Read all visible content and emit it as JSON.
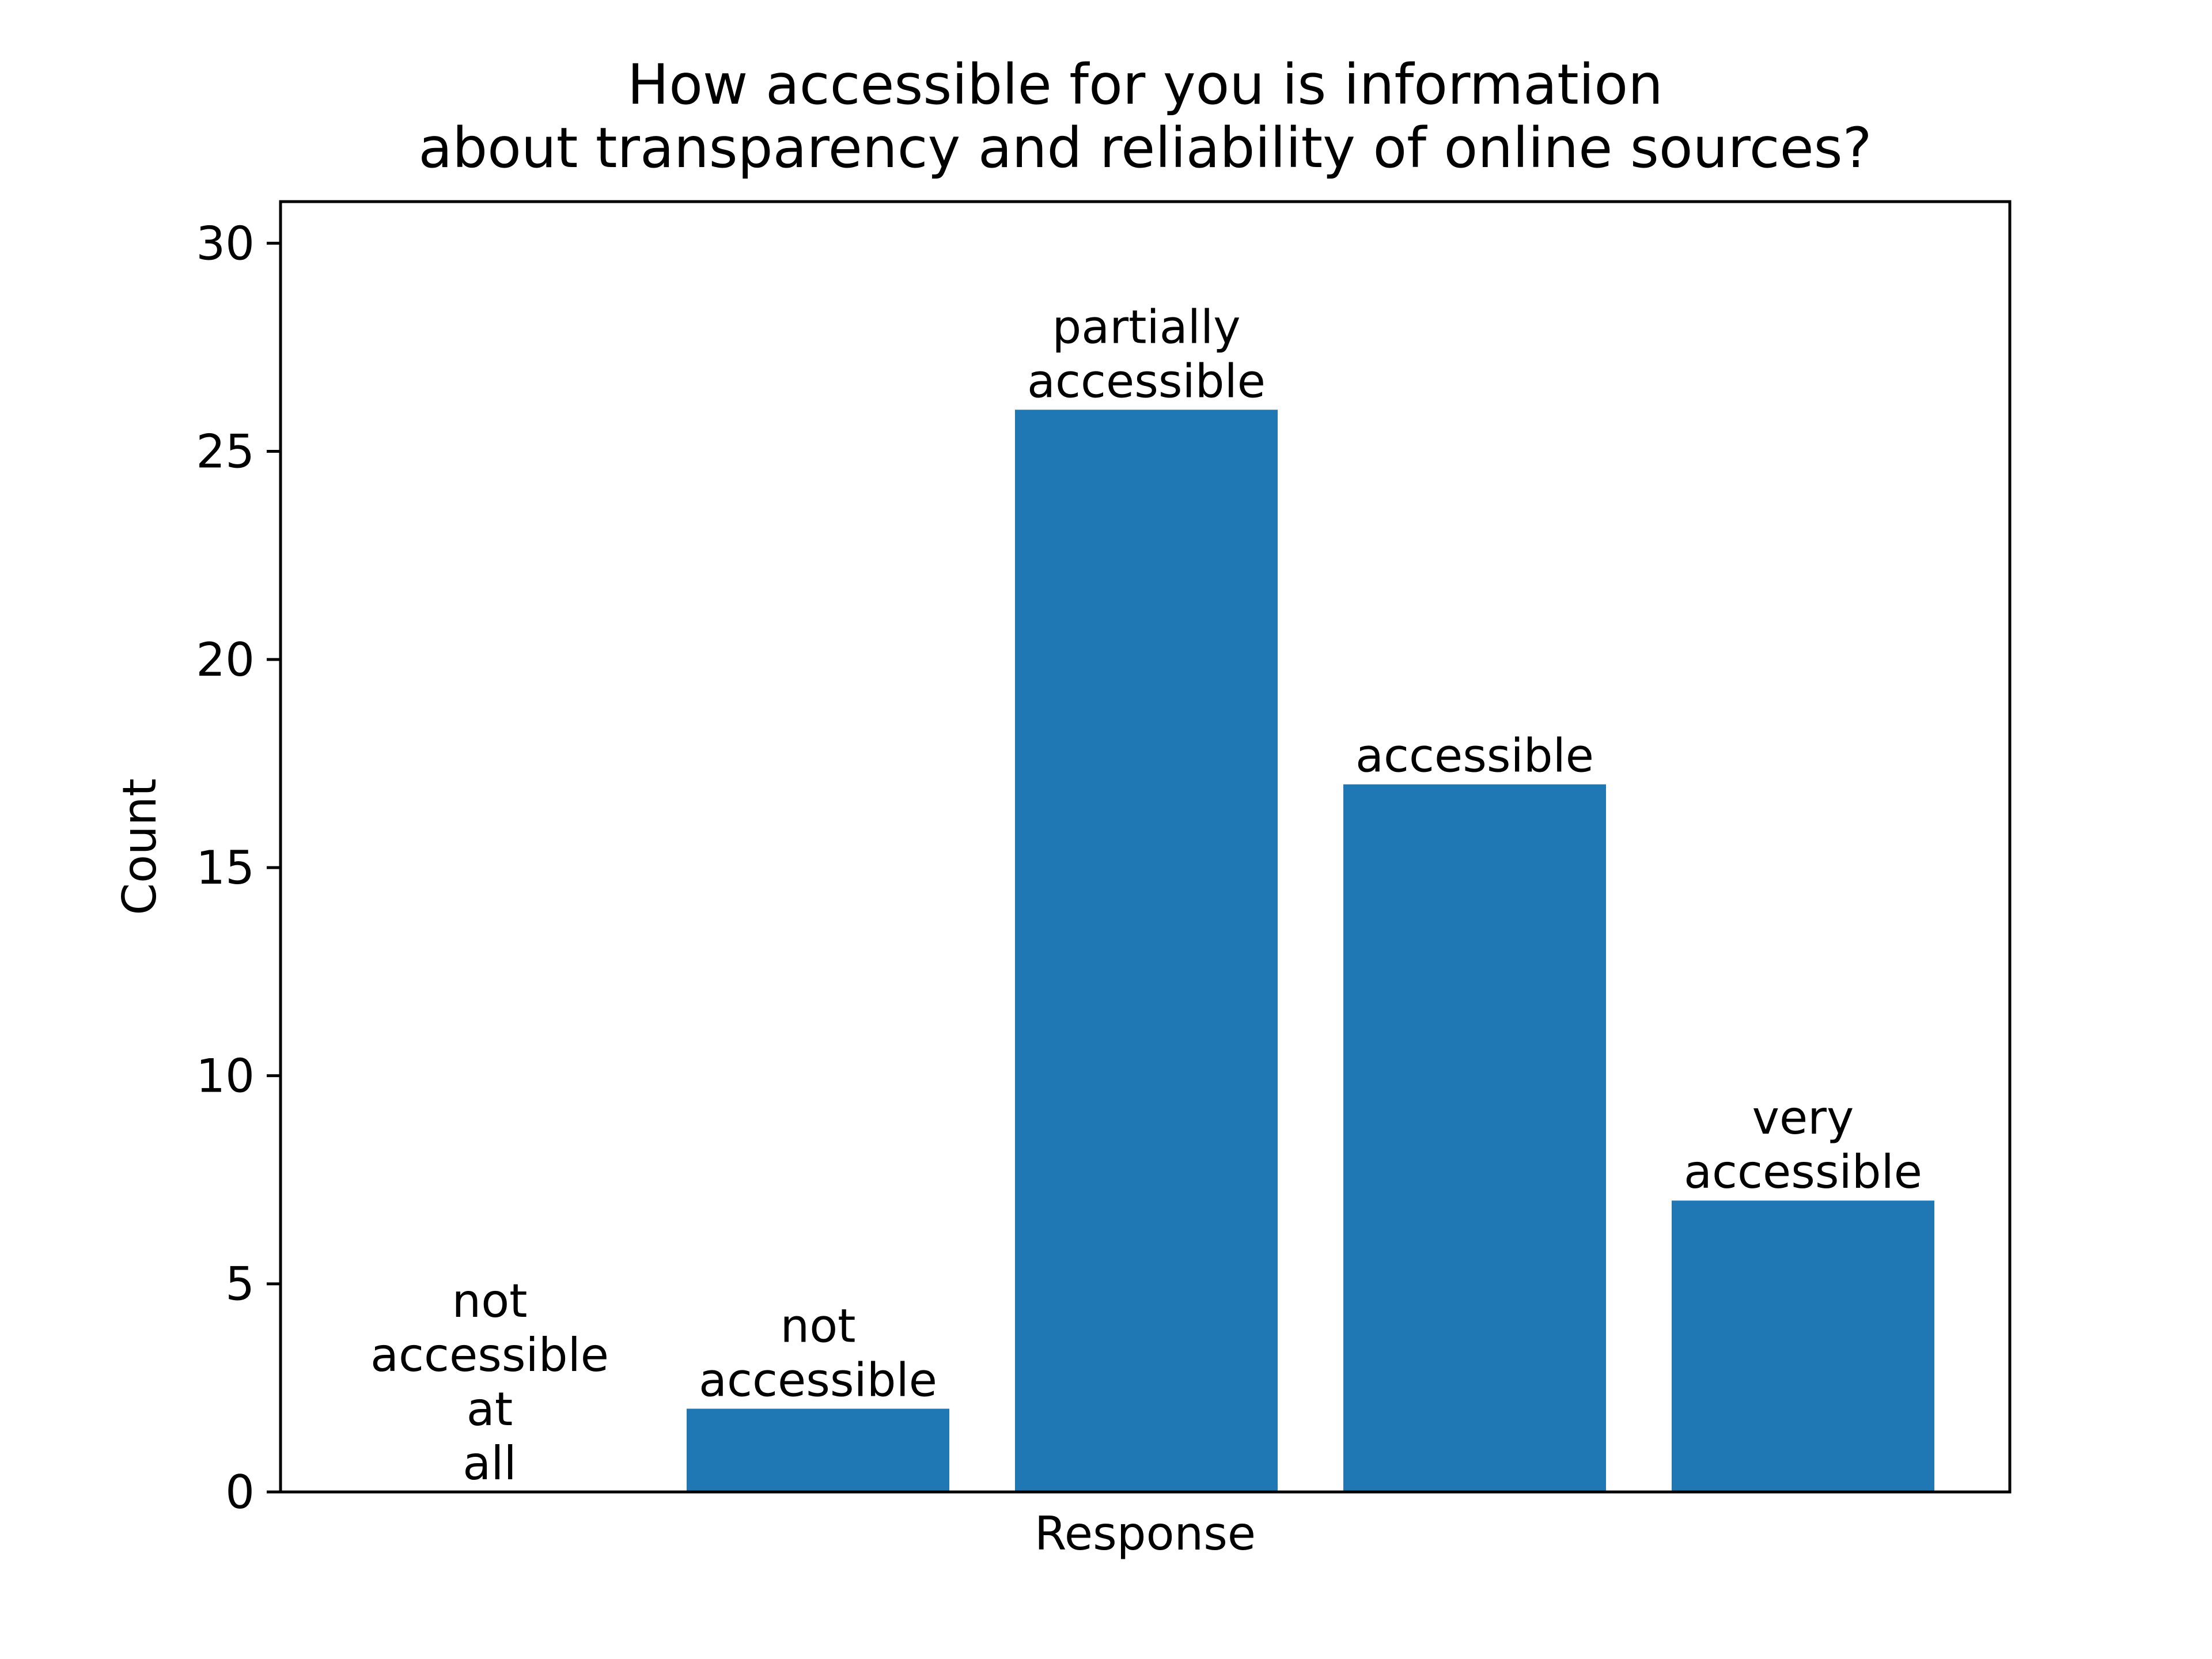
{
  "chart_data": {
    "type": "bar",
    "title": [
      "How accessible for you is information",
      "about transparency and reliability of online sources?"
    ],
    "xlabel": "Response",
    "ylabel": "Count",
    "ylim": [
      0,
      31
    ],
    "yticks": [
      "0",
      "5",
      "10",
      "15",
      "20",
      "25",
      "30"
    ],
    "categories": [
      [
        "not",
        "accessible",
        "at",
        "all"
      ],
      [
        "not",
        "accessible"
      ],
      [
        "partially",
        "accessible"
      ],
      [
        "accessible"
      ],
      [
        "very",
        "accessible"
      ]
    ],
    "values": [
      0,
      2,
      26,
      17,
      7
    ],
    "bar_color": "#1f77b4",
    "grid": false,
    "legend": "none"
  }
}
